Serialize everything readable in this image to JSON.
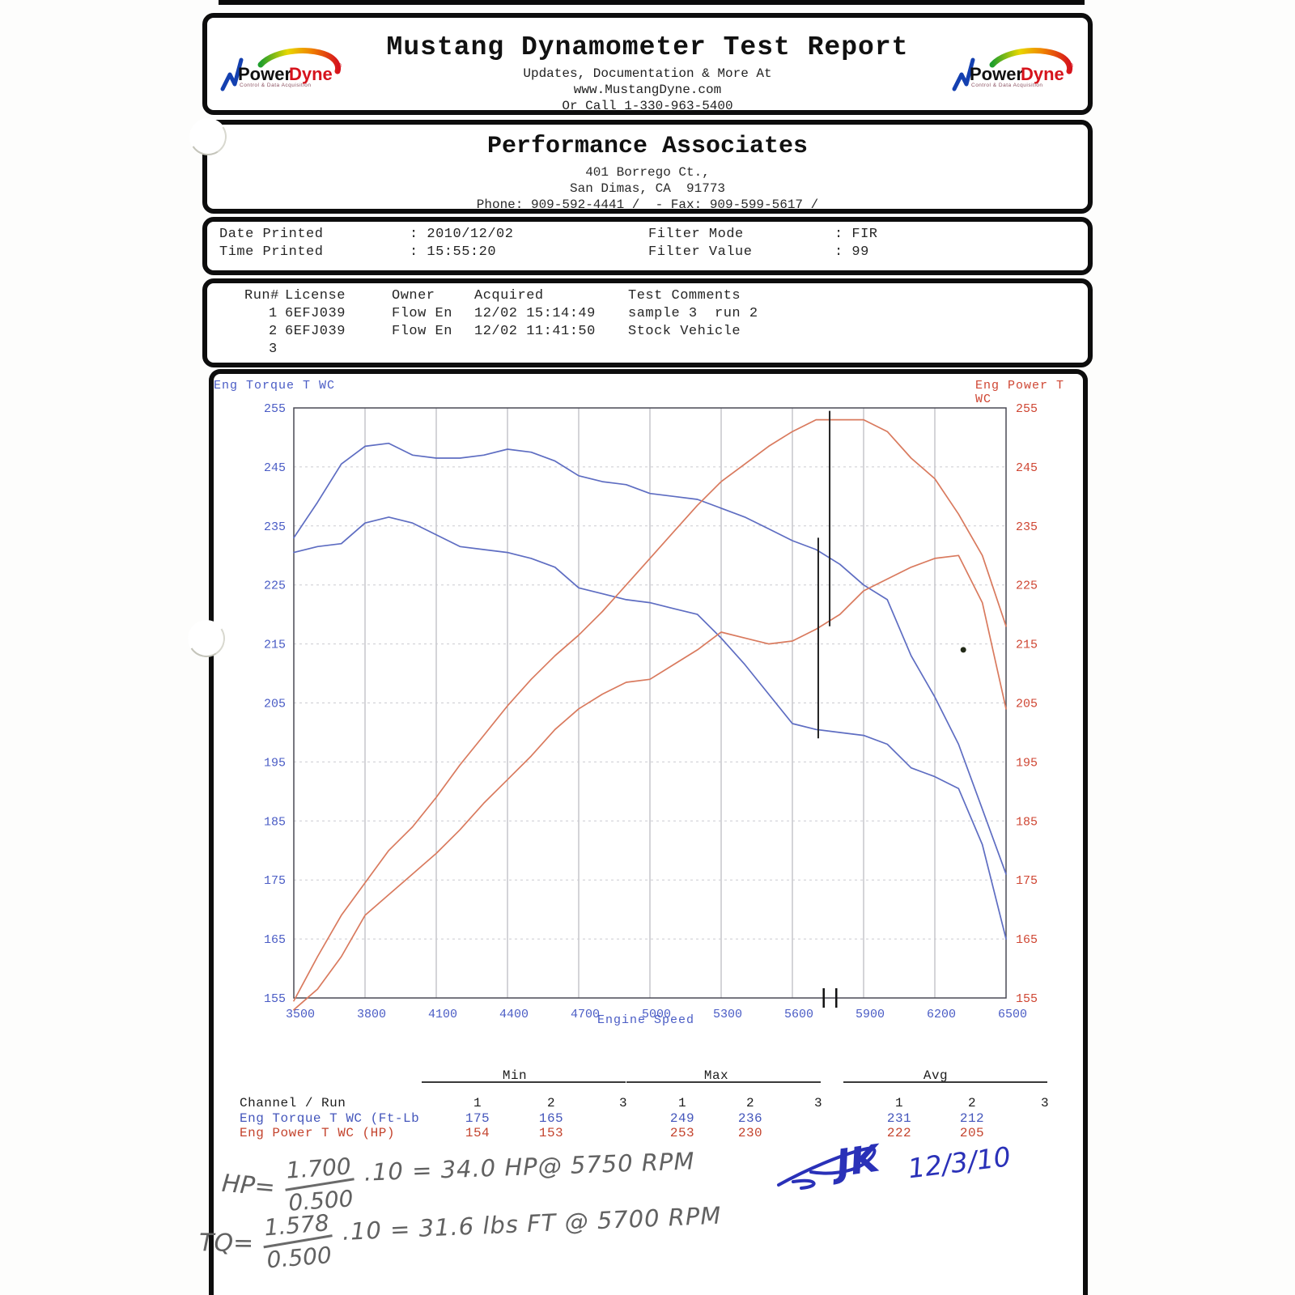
{
  "header": {
    "title": "Mustang Dynamometer Test Report",
    "sub1": "Updates, Documentation & More At",
    "sub2": "www.MustangDyne.com",
    "sub3": "Or Call 1-330-963-5400",
    "logo": {
      "part1": "Power",
      "part2": "Dyne",
      "reg": "®",
      "tagline": "Control & Data Acquisition"
    }
  },
  "company": {
    "name": "Performance Associates",
    "address1": "401 Borrego Ct.,",
    "address2": "San Dimas, CA  91773",
    "phone_line": "Phone: 909-592-4441 /  - Fax: 909-599-5617 /"
  },
  "info": {
    "date_label": "Date Printed",
    "date_value": ": 2010/12/02",
    "time_label": "Time Printed",
    "time_value": ": 15:55:20",
    "filter_mode_label": "Filter Mode",
    "filter_mode_value": ": FIR",
    "filter_value_label": "Filter Value",
    "filter_value_value": ": 99"
  },
  "runs": {
    "headers": [
      "Run#",
      "License",
      "Owner",
      "Acquired",
      "Test Comments"
    ],
    "rows": [
      [
        "1",
        "6EFJ039",
        "Flow En",
        "12/02 15:14:49",
        "sample 3  run 2"
      ],
      [
        "2",
        "6EFJ039",
        "Flow En",
        "12/02 11:41:50",
        "Stock Vehicle"
      ],
      [
        "3",
        "",
        "",
        "",
        ""
      ]
    ]
  },
  "chart_data": {
    "type": "line",
    "xlabel": "Engine Speed",
    "ylabel_left": "Eng Torque T WC",
    "ylabel_right": "Eng Power T WC",
    "xlim": [
      3500,
      6500
    ],
    "ylim": [
      155,
      255
    ],
    "x_ticks": [
      3500,
      3800,
      4100,
      4400,
      4700,
      5000,
      5300,
      5600,
      5900,
      6200,
      6500
    ],
    "y_ticks": [
      155,
      165,
      175,
      185,
      195,
      205,
      215,
      225,
      235,
      245,
      255
    ],
    "left_color": "#4a5cc5",
    "right_color": "#cf4633",
    "grid": true,
    "x_start": 3500,
    "x_step": 100,
    "series": [
      {
        "name": "Eng Torque T WC run 1",
        "axis": "left",
        "unit": "Ft-Lb",
        "color": "#5e6dc2",
        "values": [
          233,
          239,
          245.5,
          248.5,
          249,
          247,
          246.5,
          246.5,
          247,
          248,
          247.5,
          246,
          243.5,
          242.5,
          242,
          240.5,
          240,
          239.5,
          238,
          236.5,
          234.5,
          232.5,
          231,
          228.5,
          225,
          222.5,
          213,
          206,
          198,
          187,
          176
        ]
      },
      {
        "name": "Eng Torque T WC run 2",
        "axis": "left",
        "unit": "Ft-Lb",
        "color": "#5e6dc2",
        "values": [
          230.5,
          231.5,
          232,
          235.5,
          236.5,
          235.5,
          233.5,
          231.5,
          231,
          230.5,
          229.5,
          228,
          224.5,
          223.5,
          222.5,
          222,
          221,
          220,
          216,
          211.5,
          206.5,
          201.5,
          200.5,
          200,
          199.5,
          198,
          194,
          192.5,
          190.5,
          181,
          165
        ]
      },
      {
        "name": "Eng Power T WC run 1",
        "axis": "right",
        "unit": "HP",
        "color": "#d97a5e",
        "values": [
          154.5,
          162,
          169,
          174.5,
          180,
          184,
          189,
          194.5,
          199.5,
          204.5,
          209,
          213,
          216.5,
          220.5,
          225,
          229.5,
          234,
          238.5,
          242.5,
          245.5,
          248.5,
          251,
          253,
          253,
          253,
          251,
          246.5,
          243,
          237,
          230,
          218
        ]
      },
      {
        "name": "Eng Power T WC run 2",
        "axis": "right",
        "unit": "HP",
        "color": "#d97a5e",
        "values": [
          153,
          156.5,
          162,
          169,
          172.5,
          176,
          179.5,
          183.5,
          188,
          192,
          196,
          200.5,
          204,
          206.5,
          208.5,
          209,
          211.5,
          214,
          217,
          216,
          215,
          215.5,
          217.5,
          220,
          224,
          226,
          228,
          229.5,
          230,
          222,
          204
        ]
      }
    ],
    "annotations": {
      "pen_lines": [
        {
          "rpm": 5757,
          "v_top": 254.5,
          "v_bottom": 218
        },
        {
          "rpm": 5709,
          "v_top": 233,
          "v_bottom": 199
        }
      ],
      "axis_marks": [
        {
          "rpm": 5732
        },
        {
          "rpm": 5785
        }
      ],
      "speck": {
        "rpm": 6320,
        "value": 214
      }
    }
  },
  "stats": {
    "groups": [
      {
        "key": "min",
        "label": "Min"
      },
      {
        "key": "max",
        "label": "Max"
      },
      {
        "key": "avg",
        "label": "Avg"
      }
    ],
    "run_numbers": [
      "1",
      "2",
      "3"
    ],
    "channel_label": "Channel / Run",
    "rows": [
      {
        "label": "Eng Torque T WC (Ft-Lb",
        "cls": "blue",
        "min": [
          "175",
          "165",
          ""
        ],
        "max": [
          "249",
          "236",
          ""
        ],
        "avg": [
          "231",
          "212",
          ""
        ]
      },
      {
        "label": "Eng Power T WC (HP)",
        "cls": "red",
        "min": [
          "154",
          "153",
          ""
        ],
        "max": [
          "253",
          "230",
          ""
        ],
        "avg": [
          "222",
          "205",
          ""
        ]
      }
    ]
  },
  "notes": {
    "hp": {
      "lhs": "HP=",
      "num": "1.700",
      "den": "0.500",
      "rhs": ".10 = 34.0 HP@ 5750 RPM"
    },
    "tq": {
      "lhs": "TQ=",
      "num": "1.578",
      "den": "0.500",
      "rhs": ".10 = 31.6 lbs FT @ 5700 RPM"
    },
    "signature": "JK",
    "sig_date": "12/3/10"
  }
}
